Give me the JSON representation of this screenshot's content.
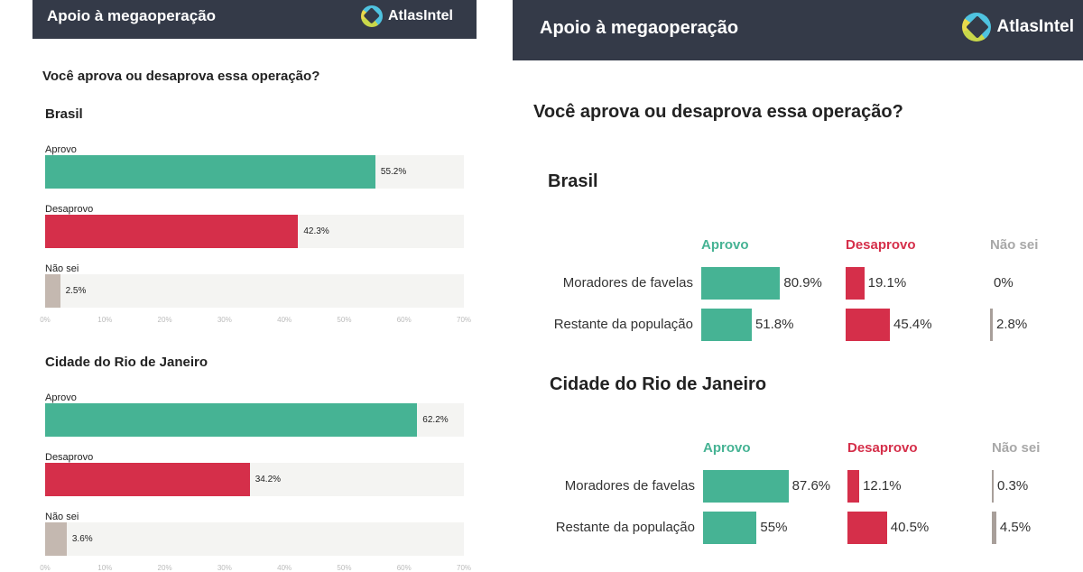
{
  "left": {
    "header_title": "Apoio à megaoperação",
    "brand": "AtlasIntel",
    "question": "Você aprova ou desaprova essa operação?",
    "axis_ticks": [
      "0%",
      "10%",
      "20%",
      "30%",
      "40%",
      "50%",
      "60%",
      "70%"
    ]
  },
  "right": {
    "header_title": "Apoio à megaoperação",
    "brand": "AtlasIntel",
    "question": "Você aprova ou desaprova essa operação?",
    "columns": [
      "Aprovo",
      "Desaprovo",
      "Não sei"
    ]
  },
  "colors": {
    "aprovo": "#46b394",
    "desaprovo": "#d52f4a",
    "naosei": "#c4b8b0",
    "header": "#343a48",
    "naosei_text": "#a8a8a8"
  },
  "chart_data": [
    {
      "type": "bar",
      "orientation": "horizontal",
      "title": "Brasil",
      "xlim": [
        0,
        70
      ],
      "categories": [
        "Aprovo",
        "Desaprovo",
        "Não sei"
      ],
      "values": [
        55.2,
        42.3,
        2.5
      ],
      "labels": [
        "55.2%",
        "42.3%",
        "2.5%"
      ]
    },
    {
      "type": "bar",
      "orientation": "horizontal",
      "title": "Cidade do Rio de Janeiro",
      "xlim": [
        0,
        70
      ],
      "categories": [
        "Aprovo",
        "Desaprovo",
        "Não sei"
      ],
      "values": [
        62.2,
        34.2,
        3.6
      ],
      "labels": [
        "62.2%",
        "34.2%",
        "3.6%"
      ]
    },
    {
      "type": "table",
      "title": "Brasil",
      "rows": [
        "Moradores de favelas",
        "Restante da população"
      ],
      "series": [
        {
          "name": "Aprovo",
          "values": [
            80.9,
            51.8
          ],
          "labels": [
            "80.9%",
            "51.8%"
          ]
        },
        {
          "name": "Desaprovo",
          "values": [
            19.1,
            45.4
          ],
          "labels": [
            "19.1%",
            "45.4%"
          ]
        },
        {
          "name": "Não sei",
          "values": [
            0,
            2.8
          ],
          "labels": [
            "0%",
            "2.8%"
          ]
        }
      ]
    },
    {
      "type": "table",
      "title": "Cidade do Rio de Janeiro",
      "rows": [
        "Moradores de favelas",
        "Restante da população"
      ],
      "series": [
        {
          "name": "Aprovo",
          "values": [
            87.6,
            55
          ],
          "labels": [
            "87.6%",
            "55%"
          ]
        },
        {
          "name": "Desaprovo",
          "values": [
            12.1,
            40.5
          ],
          "labels": [
            "12.1%",
            "40.5%"
          ]
        },
        {
          "name": "Não sei",
          "values": [
            0.3,
            4.5
          ],
          "labels": [
            "0.3%",
            "4.5%"
          ]
        }
      ]
    }
  ]
}
